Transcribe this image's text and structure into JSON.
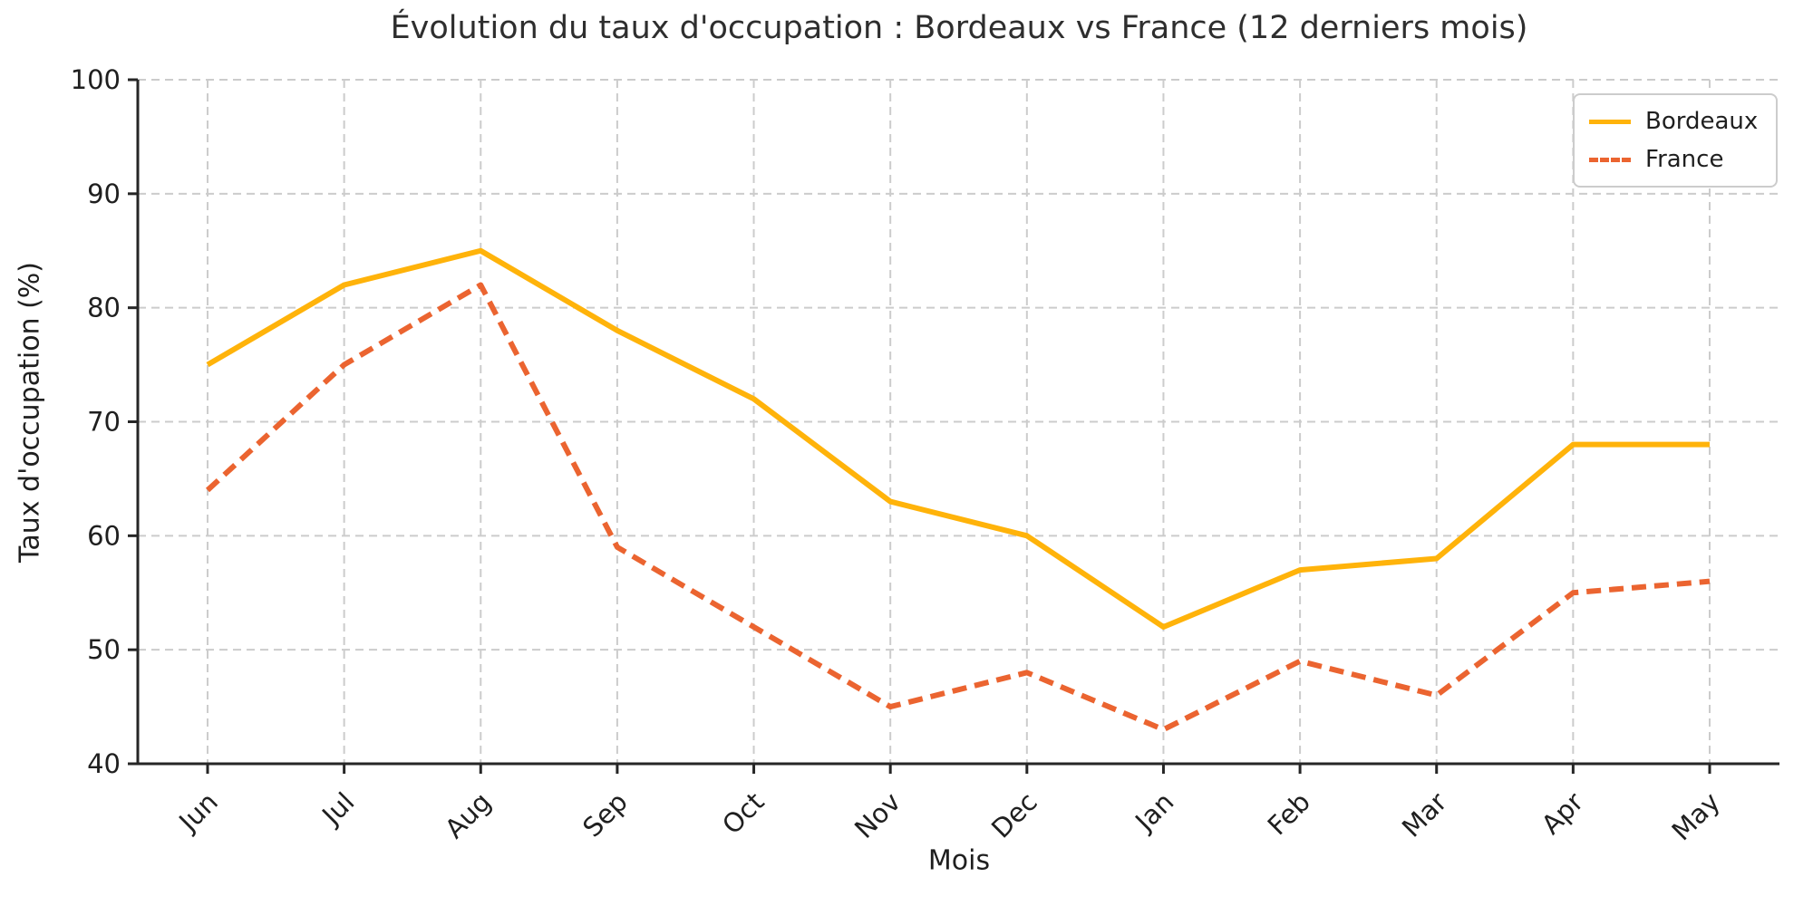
{
  "chart_data": {
    "type": "line",
    "title": "Évolution du taux d'occupation : Bordeaux vs France (12 derniers mois)",
    "xlabel": "Mois",
    "ylabel": "Taux d'occupation (%)",
    "categories": [
      "Jun",
      "Jul",
      "Aug",
      "Sep",
      "Oct",
      "Nov",
      "Dec",
      "Jan",
      "Feb",
      "Mar",
      "Apr",
      "May"
    ],
    "series": [
      {
        "name": "Bordeaux",
        "values": [
          75,
          82,
          85,
          78,
          72,
          63,
          60,
          52,
          57,
          58,
          68,
          68
        ],
        "color": "#FFB30A",
        "style": "solid"
      },
      {
        "name": "France",
        "values": [
          64,
          75,
          82,
          59,
          52,
          45,
          48,
          43,
          49,
          46,
          55,
          56
        ],
        "color": "#EB6430",
        "style": "dashed"
      }
    ],
    "ylim": [
      40,
      100
    ],
    "yticks": [
      40,
      50,
      60,
      70,
      80,
      90,
      100
    ],
    "grid": true,
    "legend_position": "upper right",
    "colors": {
      "axis": "#262626",
      "grid": "#cccccc",
      "tick_labels": "#1f1f1f",
      "title": "#2e2e2e",
      "background": "#ffffff"
    }
  }
}
